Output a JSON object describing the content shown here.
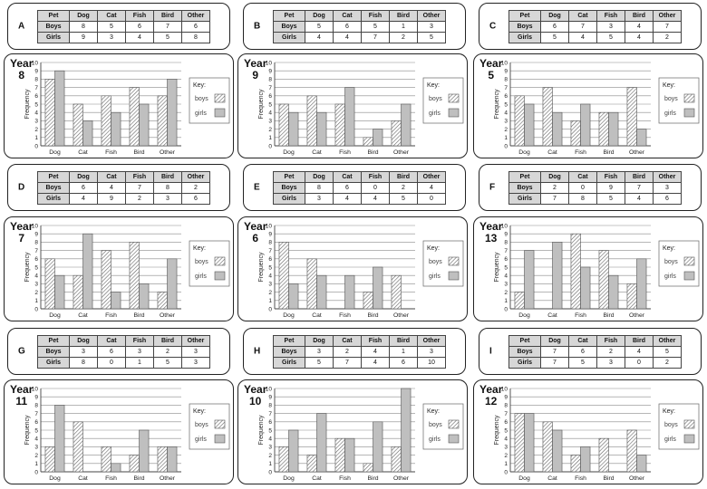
{
  "table_labels": {
    "pet": "Pet",
    "boys": "Boys",
    "girls": "Girls"
  },
  "axis": {
    "ylabel": "Frequency",
    "ylim": [
      0,
      10
    ],
    "yticks": [
      0,
      1,
      2,
      3,
      4,
      5,
      6,
      7,
      8,
      9,
      10
    ]
  },
  "key": {
    "title": "Key:",
    "boys": "boys",
    "girls": "girls"
  },
  "colors": {
    "boys_fill": "hatched-white",
    "girls_fill": "#bfbfbf",
    "axis": "#555555"
  },
  "tables": [
    {
      "letter": "A",
      "pets": [
        "Dog",
        "Cat",
        "Fish",
        "Bird",
        "Other"
      ],
      "boys": [
        8,
        5,
        6,
        7,
        6
      ],
      "girls": [
        9,
        3,
        4,
        5,
        8
      ]
    },
    {
      "letter": "B",
      "pets": [
        "Dog",
        "Cat",
        "Fish",
        "Bird",
        "Other"
      ],
      "boys": [
        5,
        6,
        5,
        1,
        3
      ],
      "girls": [
        4,
        4,
        7,
        2,
        5
      ]
    },
    {
      "letter": "C",
      "pets": [
        "Dog",
        "Cat",
        "Fish",
        "Bird",
        "Other"
      ],
      "boys": [
        6,
        7,
        3,
        4,
        7
      ],
      "girls": [
        5,
        4,
        5,
        4,
        2
      ]
    },
    {
      "letter": "D",
      "pets": [
        "Dog",
        "Cat",
        "Fish",
        "Bird",
        "Other"
      ],
      "boys": [
        6,
        4,
        7,
        8,
        2
      ],
      "girls": [
        4,
        9,
        2,
        3,
        6
      ]
    },
    {
      "letter": "E",
      "pets": [
        "Dog",
        "Cat",
        "Fish",
        "Bird",
        "Other"
      ],
      "boys": [
        8,
        6,
        0,
        2,
        4
      ],
      "girls": [
        3,
        4,
        4,
        5,
        0
      ]
    },
    {
      "letter": "F",
      "pets": [
        "Dog",
        "Cat",
        "Fish",
        "Bird",
        "Other"
      ],
      "boys": [
        2,
        0,
        9,
        7,
        3
      ],
      "girls": [
        7,
        8,
        5,
        4,
        6
      ]
    },
    {
      "letter": "G",
      "pets": [
        "Dog",
        "Cat",
        "Fish",
        "Bird",
        "Other"
      ],
      "boys": [
        3,
        6,
        3,
        2,
        3
      ],
      "girls": [
        8,
        0,
        1,
        5,
        3
      ]
    },
    {
      "letter": "H",
      "pets": [
        "Dog",
        "Cat",
        "Fish",
        "Bird",
        "Other"
      ],
      "boys": [
        3,
        2,
        4,
        1,
        3
      ],
      "girls": [
        5,
        7,
        4,
        6,
        10
      ]
    },
    {
      "letter": "I",
      "pets": [
        "Dog",
        "Cat",
        "Fish",
        "Bird",
        "Other"
      ],
      "boys": [
        7,
        6,
        2,
        4,
        5
      ],
      "girls": [
        7,
        5,
        3,
        0,
        2
      ]
    }
  ],
  "chart_data": [
    {
      "type": "bar",
      "year_word": "Year",
      "year": "8",
      "categories": [
        "Dog",
        "Cat",
        "Fish",
        "Bird",
        "Other"
      ],
      "series": [
        {
          "name": "boys",
          "values": [
            8,
            5,
            6,
            7,
            6
          ]
        },
        {
          "name": "girls",
          "values": [
            9,
            3,
            4,
            5,
            8
          ]
        }
      ],
      "ylabel": "Frequency",
      "ylim": [
        0,
        10
      ],
      "legend": "right"
    },
    {
      "type": "bar",
      "year_word": "Year",
      "year": "9",
      "categories": [
        "Dog",
        "Cat",
        "Fish",
        "Bird",
        "Other"
      ],
      "series": [
        {
          "name": "boys",
          "values": [
            5,
            6,
            5,
            1,
            3
          ]
        },
        {
          "name": "girls",
          "values": [
            4,
            4,
            7,
            2,
            5
          ]
        }
      ],
      "ylabel": "Frequency",
      "ylim": [
        0,
        10
      ],
      "legend": "right"
    },
    {
      "type": "bar",
      "year_word": "Year",
      "year": "5",
      "categories": [
        "Dog",
        "Cat",
        "Fish",
        "Bird",
        "Other"
      ],
      "series": [
        {
          "name": "boys",
          "values": [
            6,
            7,
            3,
            4,
            7
          ]
        },
        {
          "name": "girls",
          "values": [
            5,
            4,
            5,
            4,
            2
          ]
        }
      ],
      "ylabel": "Frequency",
      "ylim": [
        0,
        10
      ],
      "legend": "right"
    },
    {
      "type": "bar",
      "year_word": "Year",
      "year": "7",
      "categories": [
        "Dog",
        "Cat",
        "Fish",
        "Bird",
        "Other"
      ],
      "series": [
        {
          "name": "boys",
          "values": [
            6,
            4,
            7,
            8,
            2
          ]
        },
        {
          "name": "girls",
          "values": [
            4,
            9,
            2,
            3,
            6
          ]
        }
      ],
      "ylabel": "Frequency",
      "ylim": [
        0,
        10
      ],
      "legend": "right"
    },
    {
      "type": "bar",
      "year_word": "Year",
      "year": "6",
      "categories": [
        "Dog",
        "Cat",
        "Fish",
        "Bird",
        "Other"
      ],
      "series": [
        {
          "name": "boys",
          "values": [
            8,
            6,
            0,
            2,
            4
          ]
        },
        {
          "name": "girls",
          "values": [
            3,
            4,
            4,
            5,
            0
          ]
        }
      ],
      "ylabel": "Frequency",
      "ylim": [
        0,
        10
      ],
      "legend": "right"
    },
    {
      "type": "bar",
      "year_word": "Year",
      "year": "13",
      "categories": [
        "Dog",
        "Cat",
        "Fish",
        "Bird",
        "Other"
      ],
      "series": [
        {
          "name": "boys",
          "values": [
            2,
            0,
            9,
            7,
            3
          ]
        },
        {
          "name": "girls",
          "values": [
            7,
            8,
            5,
            4,
            6
          ]
        }
      ],
      "ylabel": "Frequency",
      "ylim": [
        0,
        10
      ],
      "legend": "right"
    },
    {
      "type": "bar",
      "year_word": "Year",
      "year": "11",
      "categories": [
        "Dog",
        "Cat",
        "Fish",
        "Bird",
        "Other"
      ],
      "series": [
        {
          "name": "boys",
          "values": [
            3,
            6,
            3,
            2,
            3
          ]
        },
        {
          "name": "girls",
          "values": [
            8,
            0,
            1,
            5,
            3
          ]
        }
      ],
      "ylabel": "Frequency",
      "ylim": [
        0,
        10
      ],
      "legend": "right"
    },
    {
      "type": "bar",
      "year_word": "Year",
      "year": "10",
      "categories": [
        "Dog",
        "Cat",
        "Fish",
        "Bird",
        "Other"
      ],
      "series": [
        {
          "name": "boys",
          "values": [
            3,
            2,
            4,
            1,
            3
          ]
        },
        {
          "name": "girls",
          "values": [
            5,
            7,
            4,
            6,
            10
          ]
        }
      ],
      "ylabel": "Frequency",
      "ylim": [
        0,
        10
      ],
      "legend": "right"
    },
    {
      "type": "bar",
      "year_word": "Year",
      "year": "12",
      "categories": [
        "Dog",
        "Cat",
        "Fish",
        "Bird",
        "Other"
      ],
      "series": [
        {
          "name": "boys",
          "values": [
            7,
            6,
            2,
            4,
            5
          ]
        },
        {
          "name": "girls",
          "values": [
            7,
            5,
            3,
            0,
            2
          ]
        }
      ],
      "ylabel": "Frequency",
      "ylim": [
        0,
        10
      ],
      "legend": "right"
    }
  ]
}
